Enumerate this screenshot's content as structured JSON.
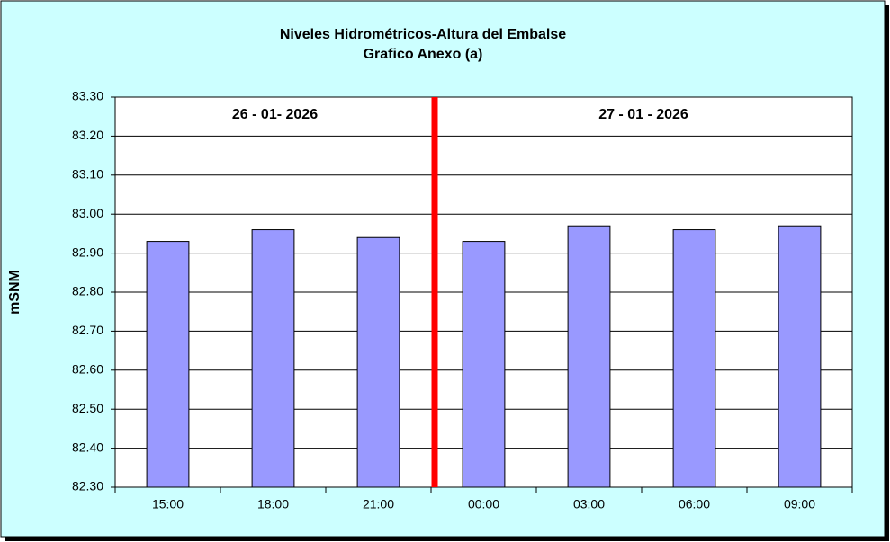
{
  "chart_data": {
    "type": "bar",
    "title": "Niveles Hidrométricos-Altura del Embalse",
    "subtitle": "Grafico Anexo (a)",
    "y_label": "mSNM",
    "annotations": [
      "26 - 01- 2026",
      "27 - 01 - 2026"
    ],
    "categories": [
      "15:00",
      "18:00",
      "21:00",
      "00:00",
      "03:00",
      "06:00",
      "09:00"
    ],
    "values": [
      82.93,
      82.96,
      82.94,
      82.93,
      82.97,
      82.96,
      82.97
    ],
    "color": "#9999ff",
    "ylim": [
      82.3,
      83.3
    ],
    "yticks": [
      {
        "value": 82.3,
        "label": "82.30"
      },
      {
        "value": 82.4,
        "label": "82.40"
      },
      {
        "value": 82.5,
        "label": "82.50"
      },
      {
        "value": 82.6,
        "label": "82.60"
      },
      {
        "value": 82.7,
        "label": "82.70"
      },
      {
        "value": 82.8,
        "label": "82.80"
      },
      {
        "value": 82.9,
        "label": "82.90"
      },
      {
        "value": 83.0,
        "label": "83.00"
      },
      {
        "value": 83.1,
        "label": "83.10"
      },
      {
        "value": 83.2,
        "label": "83.20"
      },
      {
        "value": 83.3,
        "label": "83.30"
      }
    ],
    "grid": true
  }
}
